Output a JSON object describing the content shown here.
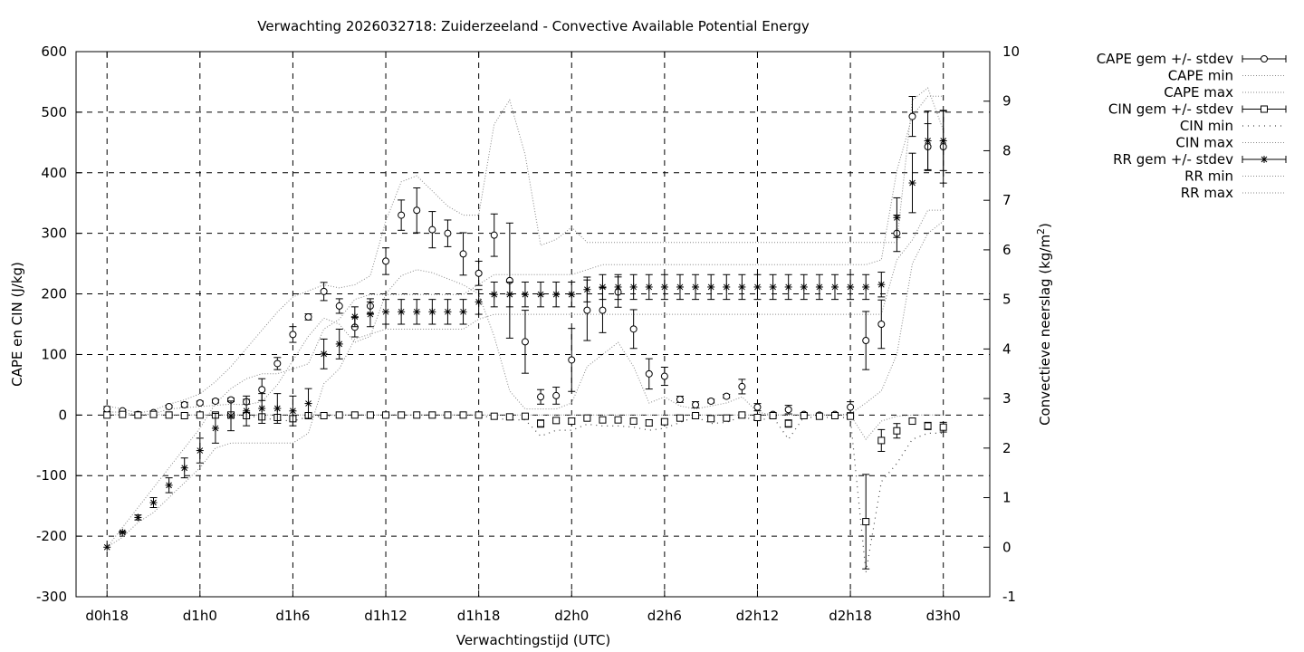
{
  "chart_data": {
    "type": "line",
    "title": "Verwachting 2026032718: Zuiderzeeland - Convective Available Potential Energy",
    "xlabel": "Verwachtingstijd (UTC)",
    "ylabel": "CAPE en CIN (J/kg)",
    "y2label_main": "Convectieve neerslag (kg/m",
    "y2label_sup": "2",
    "y2label_end": ")",
    "x_unit": "hours since d0h18",
    "xlim": [
      -2,
      57
    ],
    "ylim": [
      -300,
      600
    ],
    "y2lim": [
      -1,
      10
    ],
    "grid": true,
    "legend_position": "outside-right",
    "x_ticks": [
      {
        "x": 0,
        "label": "d0h18"
      },
      {
        "x": 6,
        "label": "d1h0"
      },
      {
        "x": 12,
        "label": "d1h6"
      },
      {
        "x": 18,
        "label": "d1h12"
      },
      {
        "x": 24,
        "label": "d1h18"
      },
      {
        "x": 30,
        "label": "d2h0"
      },
      {
        "x": 36,
        "label": "d2h6"
      },
      {
        "x": 42,
        "label": "d2h12"
      },
      {
        "x": 48,
        "label": "d2h18"
      },
      {
        "x": 54,
        "label": "d3h0"
      }
    ],
    "y_ticks": [
      {
        "v": -300,
        "label": "-300"
      },
      {
        "v": -200,
        "label": "-200"
      },
      {
        "v": -100,
        "label": "-100"
      },
      {
        "v": 0,
        "label": "0"
      },
      {
        "v": 100,
        "label": "100"
      },
      {
        "v": 200,
        "label": "200"
      },
      {
        "v": 300,
        "label": "300"
      },
      {
        "v": 400,
        "label": "400"
      },
      {
        "v": 500,
        "label": "500"
      },
      {
        "v": 600,
        "label": "600"
      }
    ],
    "y2_ticks": [
      {
        "v": -1,
        "label": "-1"
      },
      {
        "v": 0,
        "label": "0"
      },
      {
        "v": 1,
        "label": "1"
      },
      {
        "v": 2,
        "label": "2"
      },
      {
        "v": 3,
        "label": "3"
      },
      {
        "v": 4,
        "label": "4"
      },
      {
        "v": 5,
        "label": "5"
      },
      {
        "v": 6,
        "label": "6"
      },
      {
        "v": 7,
        "label": "7"
      },
      {
        "v": 8,
        "label": "8"
      },
      {
        "v": 9,
        "label": "9"
      },
      {
        "v": 10,
        "label": "10"
      }
    ],
    "legend": [
      {
        "label": "CAPE gem +/- stdev",
        "style": "errorbar-circle"
      },
      {
        "label": "CAPE min",
        "style": "dotted"
      },
      {
        "label": "CAPE max",
        "style": "dotted"
      },
      {
        "label": "CIN gem +/- stdev",
        "style": "errorbar-square"
      },
      {
        "label": "CIN min",
        "style": "sparse-dotted"
      },
      {
        "label": "CIN max",
        "style": "dotted"
      },
      {
        "label": "RR gem +/- stdev",
        "style": "errorbar-star"
      },
      {
        "label": "RR min",
        "style": "dotted"
      },
      {
        "label": "RR max",
        "style": "dotted"
      }
    ],
    "x": [
      0,
      1,
      2,
      3,
      4,
      5,
      6,
      7,
      8,
      9,
      10,
      11,
      12,
      13,
      14,
      15,
      16,
      17,
      18,
      19,
      20,
      21,
      22,
      23,
      24,
      25,
      26,
      27,
      28,
      29,
      30,
      31,
      32,
      33,
      34,
      35,
      36,
      37,
      38,
      39,
      40,
      41,
      42,
      43,
      44,
      45,
      46,
      47,
      48,
      49,
      50,
      51,
      52,
      53,
      54
    ],
    "series": [
      {
        "name": "CAPE gem +/- stdev",
        "axis": "y1",
        "marker": "circle",
        "mean": [
          10,
          7,
          1,
          4,
          14,
          17,
          20,
          23,
          25,
          22,
          42,
          85,
          133,
          162,
          204,
          180,
          145,
          180,
          254,
          330,
          338,
          306,
          300,
          266,
          234,
          297,
          222,
          121,
          30,
          32,
          91,
          173,
          173,
          203,
          142,
          68,
          64,
          26,
          17,
          23,
          31,
          47,
          13,
          1,
          9,
          1,
          0,
          1,
          13,
          123,
          150,
          300,
          493,
          443,
          443
        ],
        "sd": [
          4,
          2,
          1,
          2,
          2,
          4,
          3,
          3,
          3,
          4,
          18,
          10,
          13,
          5,
          15,
          12,
          16,
          12,
          22,
          25,
          37,
          30,
          22,
          35,
          20,
          35,
          95,
          52,
          12,
          14,
          52,
          50,
          37,
          25,
          32,
          25,
          15,
          5,
          5,
          3,
          3,
          12,
          6,
          3,
          7,
          2,
          1,
          2,
          9,
          48,
          40,
          30,
          33,
          38,
          60
        ]
      },
      {
        "name": "CAPE min",
        "axis": "y1",
        "values": [
          5,
          5,
          0,
          2,
          10,
          12,
          14,
          16,
          18,
          17,
          22,
          50,
          90,
          130,
          160,
          150,
          120,
          130,
          200,
          230,
          240,
          235,
          225,
          215,
          200,
          130,
          40,
          10,
          10,
          10,
          20,
          80,
          100,
          120,
          80,
          20,
          30,
          15,
          10,
          15,
          20,
          30,
          5,
          0,
          0,
          0,
          0,
          0,
          2,
          20,
          40,
          100,
          250,
          300,
          320
        ]
      },
      {
        "name": "CAPE max",
        "axis": "y1",
        "values": [
          15,
          10,
          3,
          8,
          18,
          25,
          35,
          55,
          80,
          110,
          140,
          170,
          195,
          205,
          215,
          210,
          215,
          230,
          320,
          385,
          395,
          370,
          345,
          330,
          330,
          480,
          520,
          430,
          280,
          290,
          310,
          285,
          285,
          285,
          285,
          285,
          285,
          285,
          285,
          285,
          285,
          285,
          285,
          285,
          285,
          285,
          285,
          285,
          285,
          285,
          285,
          285,
          520,
          540,
          470
        ]
      },
      {
        "name": "CIN gem +/- stdev",
        "axis": "y1",
        "marker": "square",
        "mean": [
          0,
          1,
          0,
          1,
          0,
          -1,
          0,
          0,
          0,
          -1,
          -3,
          -4,
          -6,
          -1,
          -1,
          0,
          0,
          0,
          0,
          0,
          0,
          0,
          0,
          0,
          0,
          -2,
          -3,
          -2,
          -14,
          -9,
          -10,
          -5,
          -8,
          -8,
          -10,
          -13,
          -11,
          -5,
          -1,
          -6,
          -5,
          0,
          -4,
          -1,
          -14,
          -1,
          -2,
          -1,
          -2,
          -176,
          -42,
          -26,
          -10,
          -18,
          -20
        ],
        "sd": [
          0,
          0,
          0,
          0,
          0,
          0,
          0,
          0,
          0,
          0,
          0,
          0,
          0,
          0,
          0,
          0,
          0,
          0,
          0,
          0,
          0,
          0,
          0,
          0,
          0,
          0,
          0,
          0,
          6,
          4,
          5,
          2,
          3,
          3,
          4,
          5,
          4,
          2,
          0,
          3,
          2,
          0,
          2,
          0,
          6,
          0,
          1,
          0,
          1,
          78,
          18,
          12,
          4,
          6,
          8
        ]
      },
      {
        "name": "CIN min",
        "axis": "y1",
        "values": [
          0,
          0,
          0,
          0,
          0,
          0,
          0,
          0,
          0,
          0,
          -5,
          -8,
          -10,
          -3,
          -2,
          0,
          0,
          0,
          0,
          0,
          0,
          0,
          0,
          0,
          0,
          -5,
          -8,
          -8,
          -35,
          -25,
          -25,
          -15,
          -18,
          -18,
          -20,
          -25,
          -22,
          -12,
          -3,
          -14,
          -12,
          -2,
          -10,
          -3,
          -40,
          -3,
          -5,
          -3,
          -5,
          -260,
          -110,
          -80,
          -40,
          -30,
          -30
        ]
      },
      {
        "name": "CIN max",
        "axis": "y1",
        "values": [
          0,
          1,
          0,
          1,
          0,
          0,
          0,
          0,
          0,
          0,
          0,
          0,
          0,
          0,
          0,
          0,
          0,
          0,
          0,
          0,
          0,
          0,
          0,
          0,
          0,
          0,
          0,
          0,
          0,
          0,
          0,
          0,
          0,
          0,
          0,
          0,
          0,
          0,
          0,
          0,
          0,
          0,
          0,
          0,
          0,
          0,
          0,
          0,
          0,
          -40,
          -10,
          -2,
          0,
          0,
          0
        ]
      },
      {
        "name": "RR gem +/- stdev",
        "axis": "y2",
        "marker": "star",
        "mean": [
          0,
          0.3,
          0.6,
          0.9,
          1.25,
          1.6,
          1.95,
          2.4,
          2.65,
          2.75,
          2.8,
          2.8,
          2.75,
          2.9,
          3.9,
          4.1,
          4.65,
          4.7,
          4.75,
          4.75,
          4.75,
          4.75,
          4.75,
          4.75,
          4.95,
          5.1,
          5.1,
          5.1,
          5.1,
          5.1,
          5.1,
          5.2,
          5.25,
          5.25,
          5.25,
          5.25,
          5.25,
          5.25,
          5.25,
          5.25,
          5.25,
          5.25,
          5.25,
          5.25,
          5.25,
          5.25,
          5.25,
          5.25,
          5.25,
          5.25,
          5.3,
          6.65,
          7.35,
          8.2,
          8.2
        ],
        "sd": [
          0,
          0.02,
          0.05,
          0.1,
          0.15,
          0.2,
          0.25,
          0.3,
          0.3,
          0.3,
          0.3,
          0.3,
          0.3,
          0.3,
          0.3,
          0.3,
          0.2,
          0.25,
          0.25,
          0.25,
          0.25,
          0.25,
          0.25,
          0.25,
          0.25,
          0.25,
          0.25,
          0.25,
          0.25,
          0.25,
          0.25,
          0.25,
          0.25,
          0.25,
          0.25,
          0.25,
          0.25,
          0.25,
          0.25,
          0.25,
          0.25,
          0.25,
          0.25,
          0.25,
          0.25,
          0.25,
          0.25,
          0.25,
          0.25,
          0.25,
          0.25,
          0.4,
          0.6,
          0.6,
          0.6
        ]
      },
      {
        "name": "RR min",
        "axis": "y2",
        "values": [
          0,
          0.2,
          0.5,
          0.7,
          1.0,
          1.3,
          1.6,
          2.0,
          2.1,
          2.1,
          2.1,
          2.1,
          2.1,
          2.3,
          3.3,
          3.6,
          4.2,
          4.3,
          4.4,
          4.4,
          4.4,
          4.4,
          4.4,
          4.4,
          4.6,
          4.7,
          4.7,
          4.7,
          4.7,
          4.7,
          4.7,
          4.7,
          4.7,
          4.7,
          4.7,
          4.7,
          4.7,
          4.7,
          4.7,
          4.7,
          4.7,
          4.7,
          4.7,
          4.7,
          4.7,
          4.7,
          4.7,
          4.7,
          4.7,
          4.7,
          4.7,
          5.8,
          6.2,
          6.8,
          6.8
        ]
      },
      {
        "name": "RR max",
        "axis": "y2",
        "values": [
          0,
          0.4,
          0.8,
          1.2,
          1.6,
          2.0,
          2.4,
          2.9,
          3.2,
          3.4,
          3.5,
          3.5,
          3.6,
          3.7,
          4.4,
          4.6,
          5.0,
          5.1,
          5.1,
          5.1,
          5.1,
          5.1,
          5.1,
          5.1,
          5.3,
          5.5,
          5.5,
          5.5,
          5.5,
          5.5,
          5.5,
          5.6,
          5.7,
          5.7,
          5.7,
          5.7,
          5.7,
          5.7,
          5.7,
          5.7,
          5.7,
          5.7,
          5.7,
          5.7,
          5.7,
          5.7,
          5.7,
          5.7,
          5.7,
          5.7,
          5.8,
          7.6,
          8.7,
          9.1,
          9.1
        ]
      }
    ]
  }
}
